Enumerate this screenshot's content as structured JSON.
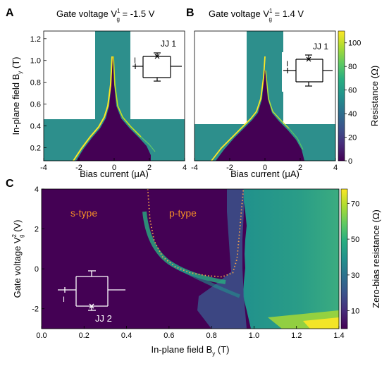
{
  "panels": {
    "A": {
      "letter": "A",
      "title_main": "Gate voltage V",
      "title_sub": "g",
      "title_sup": "1",
      "title_value": " = -1.5 V",
      "junction": "JJ 1",
      "current_symbol": "I"
    },
    "B": {
      "letter": "B",
      "title_main": "Gate voltage V",
      "title_sub": "g",
      "title_sup": "1",
      "title_value": " = 1.4 V",
      "junction": "JJ 1",
      "current_symbol": "I"
    },
    "C": {
      "letter": "C",
      "junction": "JJ 2",
      "current_symbol": "I",
      "region_s": "s-type",
      "region_p": "p-type"
    }
  },
  "colors": {
    "low": "#440154",
    "mid": "#21918c",
    "high": "#fde725",
    "annotation": "#f28c28",
    "dotted": "#f5a04a"
  },
  "chart_data": [
    {
      "id": "A",
      "type": "heatmap",
      "xlabel": "Bias current (μA)",
      "ylabel_main": "In-plane field B",
      "ylabel_sub": "y",
      "ylabel_unit": " (T)",
      "xlim": [
        -4,
        4
      ],
      "ylim": [
        0.08,
        1.27
      ],
      "xticks": [
        -4,
        -2,
        0,
        2,
        4
      ],
      "yticks": [
        0.2,
        0.4,
        0.6,
        0.8,
        1.0,
        1.2
      ],
      "xtick_labels": [
        "-4",
        "-2",
        "0",
        "2",
        "4"
      ],
      "ytick_labels": [
        "0.2",
        "0.4",
        "0.6",
        "0.8",
        "1.0",
        "1.2"
      ],
      "measured_window": {
        "full_range_below_B": 0.45,
        "narrow_current_range": [
          -1.0,
          1.0
        ]
      },
      "critical_current_envelope": {
        "B": [
          0.1,
          0.2,
          0.3,
          0.4,
          0.5,
          0.6,
          0.8,
          1.0,
          1.2
        ],
        "Ic": [
          2.0,
          1.4,
          0.95,
          0.6,
          0.38,
          0.25,
          0.13,
          0.07,
          0.04
        ]
      }
    },
    {
      "id": "B",
      "type": "heatmap",
      "xlabel": "Bias current (μA)",
      "xlim": [
        -4,
        4
      ],
      "ylim": [
        0.08,
        1.27
      ],
      "xticks": [
        -4,
        -2,
        0,
        2,
        4
      ],
      "xtick_labels": [
        "-4",
        "-2",
        "0",
        "2",
        "4"
      ],
      "colorbar_label": "Resistance (Ω)",
      "colorbar_range": [
        0,
        110
      ],
      "colorbar_ticks": [
        0,
        20,
        40,
        60,
        80,
        100
      ],
      "colorbar_tick_labels": [
        "0",
        "20",
        "40",
        "60",
        "80",
        "100"
      ],
      "measured_window": {
        "full_range_below_B": 0.38,
        "narrow_current_range": [
          -1.0,
          1.0
        ]
      },
      "critical_current_envelope": {
        "B": [
          0.1,
          0.2,
          0.3,
          0.4,
          0.5,
          0.6,
          0.8,
          1.0,
          1.2
        ],
        "Ic": [
          2.2,
          1.5,
          0.9,
          0.5,
          0.3,
          0.18,
          0.08,
          0.04,
          0.02
        ]
      }
    },
    {
      "id": "C",
      "type": "heatmap",
      "xlabel_main": "In-plane field B",
      "xlabel_sub": "y",
      "xlabel_unit": " (T)",
      "ylabel_main": "Gate voltage V",
      "ylabel_sub": "g",
      "ylabel_sup": "2",
      "ylabel_unit": " (V)",
      "xlim": [
        0.0,
        1.4
      ],
      "ylim": [
        -3,
        4
      ],
      "xticks": [
        0.0,
        0.2,
        0.4,
        0.6,
        0.8,
        1.0,
        1.2,
        1.4
      ],
      "yticks": [
        -2,
        0,
        2,
        4
      ],
      "xtick_labels": [
        "0.0",
        "0.2",
        "0.4",
        "0.6",
        "0.8",
        "1.0",
        "1.2",
        "1.4"
      ],
      "ytick_labels": [
        "-2",
        "0",
        "2",
        "4"
      ],
      "colorbar_label": "Zero-bias resistance (Ω)",
      "colorbar_range": [
        0,
        78
      ],
      "colorbar_ticks": [
        10,
        30,
        50,
        70
      ],
      "colorbar_tick_labels": [
        "10",
        "30",
        "50",
        "70"
      ],
      "s_p_boundary": {
        "Bx": [
          0.5,
          0.51,
          0.53,
          0.57,
          0.63,
          0.7,
          0.78,
          0.85,
          0.9,
          0.92,
          0.93,
          0.94,
          0.95
        ],
        "Vg": [
          4,
          2.5,
          1.4,
          0.6,
          0.1,
          -0.2,
          -0.35,
          -0.4,
          -0.2,
          0.5,
          1.6,
          2.8,
          4
        ]
      },
      "transition_field": {
        "Vg": [
          -3,
          -2,
          -1,
          0,
          1,
          2,
          3,
          4
        ],
        "B": [
          1.0,
          0.93,
          0.86,
          0.9,
          0.93,
          0.94,
          0.95,
          0.96
        ]
      }
    }
  ]
}
